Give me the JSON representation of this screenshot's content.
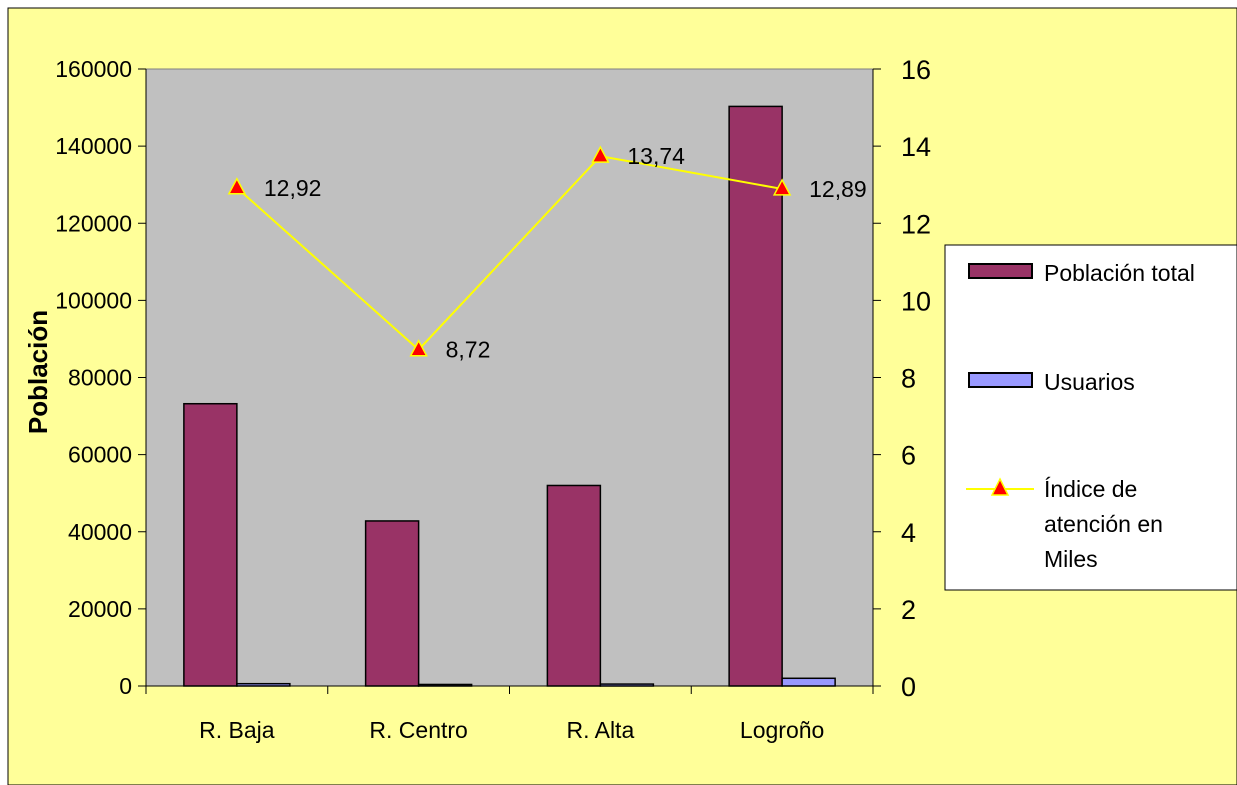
{
  "chart_data": {
    "type": "bar",
    "categories": [
      "R. Baja",
      "R. Centro",
      "R. Alta",
      "Logroño"
    ],
    "series": [
      {
        "name": "Población total",
        "kind": "bar",
        "axis": "left",
        "color": "#993366",
        "values": [
          73200,
          42800,
          52000,
          150300
        ]
      },
      {
        "name": "Usuarios",
        "kind": "bar",
        "axis": "left",
        "color": "#9999ff",
        "values": [
          600,
          400,
          500,
          2000
        ]
      },
      {
        "name": "Índice de atención en Miles",
        "kind": "line",
        "axis": "right",
        "color": "#ffff00",
        "marker_color": "#ff0000",
        "values": [
          12.92,
          8.72,
          13.74,
          12.89
        ],
        "labels": [
          "12,92",
          "8,72",
          "13,74",
          "12,89"
        ]
      }
    ],
    "ylabel": "Población",
    "ylim": [
      0,
      160000
    ],
    "y_ticks": [
      "0",
      "20000",
      "40000",
      "60000",
      "80000",
      "100000",
      "120000",
      "140000",
      "160000"
    ],
    "y2lim": [
      0,
      16
    ],
    "y2_ticks": [
      "0",
      "2",
      "4",
      "6",
      "8",
      "10",
      "12",
      "14",
      "16"
    ],
    "legend_position": "right",
    "grid": false,
    "colors": {
      "chart_area": "#ffff99",
      "plot_area": "#c0c0c0"
    }
  }
}
